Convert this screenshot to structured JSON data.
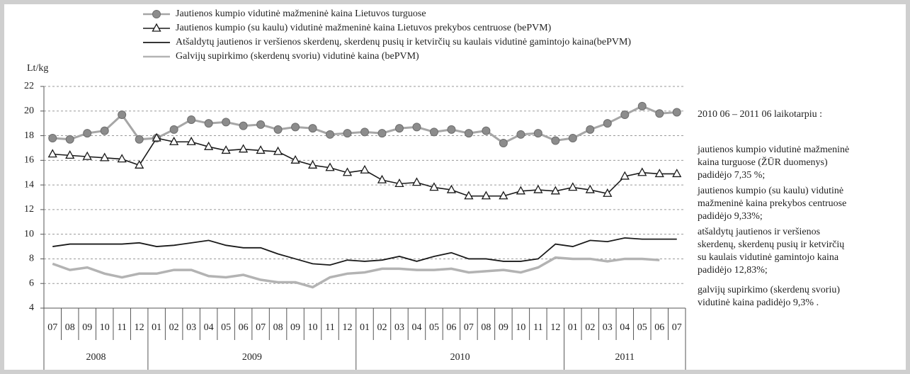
{
  "chart_data": {
    "type": "line",
    "y_label": "Lt/kg",
    "categories": [
      "07",
      "08",
      "09",
      "10",
      "11",
      "12",
      "01",
      "02",
      "03",
      "04",
      "05",
      "06",
      "07",
      "08",
      "09",
      "10",
      "11",
      "12",
      "01",
      "02",
      "03",
      "04",
      "05",
      "06",
      "07",
      "08",
      "09",
      "10",
      "11",
      "12",
      "01",
      "02",
      "03",
      "04",
      "05",
      "06",
      "07"
    ],
    "years": [
      "2008",
      "2009",
      "2010",
      "2011"
    ],
    "ylim": [
      4,
      22
    ],
    "yticks": [
      4,
      6,
      8,
      10,
      12,
      14,
      16,
      18,
      20,
      22
    ],
    "grid": true,
    "series": [
      {
        "name": "Jautienos kumpio vidutinė mažmeninė kaina Lietuvos turguose",
        "color": "#a6a6a6",
        "marker": "circle",
        "values": [
          17.8,
          17.7,
          18.2,
          18.4,
          19.7,
          17.7,
          17.8,
          18.5,
          19.3,
          19.0,
          19.1,
          18.8,
          18.9,
          18.5,
          18.7,
          18.6,
          18.1,
          18.2,
          18.3,
          18.2,
          18.6,
          18.7,
          18.3,
          18.5,
          18.2,
          18.4,
          17.4,
          18.1,
          18.2,
          17.6,
          17.8,
          18.5,
          19.0,
          19.7,
          20.4,
          19.8,
          19.9
        ]
      },
      {
        "name": "Jautienos kumpio (su kaulu) vidutinė mažmeninė kaina Lietuvos prekybos centruose (bePVM)",
        "color": "#1a1a1a",
        "marker": "triangle",
        "values": [
          16.5,
          16.4,
          16.3,
          16.2,
          16.1,
          15.6,
          17.8,
          17.5,
          17.5,
          17.1,
          16.8,
          16.9,
          16.8,
          16.7,
          16.0,
          15.6,
          15.4,
          15.0,
          15.2,
          14.4,
          14.1,
          14.2,
          13.8,
          13.6,
          13.1,
          13.1,
          13.1,
          13.5,
          13.6,
          13.5,
          13.8,
          13.6,
          13.3,
          14.7,
          15.0,
          14.9,
          14.9
        ]
      },
      {
        "name": "Atšaldytų jautienos ir veršienos skerdenų, skerdenų pusių ir ketvirčių su kaulais vidutinė gamintojo kaina(bePVM)",
        "color": "#1a1a1a",
        "marker": "none",
        "values": [
          9.0,
          9.2,
          9.2,
          9.2,
          9.2,
          9.3,
          9.0,
          9.1,
          9.3,
          9.5,
          9.1,
          8.9,
          8.9,
          8.4,
          8.0,
          7.6,
          7.5,
          7.9,
          7.8,
          7.9,
          8.2,
          7.8,
          8.2,
          8.5,
          8.0,
          8.0,
          7.8,
          7.8,
          8.0,
          9.2,
          9.0,
          9.5,
          9.4,
          9.7,
          9.6,
          9.6,
          9.6
        ]
      },
      {
        "name": "Galvijų supirkimo (skerdenų svoriu) vidutinė kaina (bePVM)",
        "color": "#b3b3b3",
        "marker": "none",
        "values": [
          7.6,
          7.1,
          7.3,
          6.8,
          6.5,
          6.8,
          6.8,
          7.1,
          7.1,
          6.6,
          6.5,
          6.7,
          6.3,
          6.1,
          6.1,
          5.7,
          6.5,
          6.8,
          6.9,
          7.2,
          7.2,
          7.1,
          7.1,
          7.2,
          6.9,
          7.0,
          7.1,
          6.9,
          7.3,
          8.1,
          8.0,
          8.0,
          7.8,
          8.0,
          8.0,
          7.9,
          null
        ]
      }
    ],
    "notes": [
      [
        "2010 06 – 2011 06 laikotarpiu :"
      ],
      [
        "jautienos kumpio vidutinė mažmeninė",
        "kaina turguose (ŽŪR duomenys)",
        "padidėjo 7,35 %;"
      ],
      [
        "jautienos kumpio (su kaulu) vidutinė",
        "mažmeninė kaina prekybos centruose",
        "padidėjo 9,33%;"
      ],
      [
        "atšaldytų jautienos ir veršienos",
        "skerdenų, skerdenų pusių ir ketvirčių",
        "su kaulais vidutinė gamintojo kaina",
        "padidėjo 12,83%;"
      ],
      [
        "galvijų supirkimo (skerdenų svoriu)",
        "vidutinė kaina padidėjo 9,3% ."
      ]
    ]
  }
}
